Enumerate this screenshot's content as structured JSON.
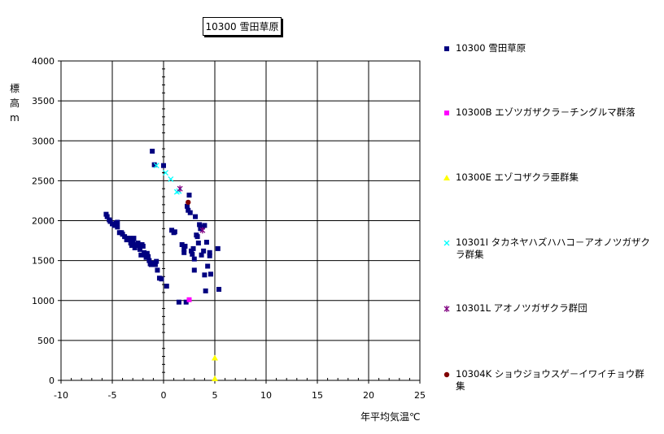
{
  "chart_data": {
    "type": "scatter",
    "title": "10300 雪田草原",
    "xlabel": "年平均気温℃",
    "ylabel": [
      "標",
      "高",
      "m"
    ],
    "xlim": [
      -10,
      25
    ],
    "ylim": [
      0,
      4000
    ],
    "x_ticks": [
      -10,
      -5,
      0,
      5,
      10,
      15,
      20,
      25
    ],
    "y_ticks": [
      0,
      500,
      1000,
      1500,
      2000,
      2500,
      3000,
      3500,
      4000
    ],
    "grid": true,
    "legend_position": "right",
    "series": [
      {
        "name": "10300 雪田草原",
        "color": "#000080",
        "marker": "square",
        "points": [
          [
            -5.6,
            2080
          ],
          [
            -5.5,
            2050
          ],
          [
            -5.3,
            2010
          ],
          [
            -5.2,
            1990
          ],
          [
            -5.0,
            1960
          ],
          [
            -4.9,
            1960
          ],
          [
            -4.8,
            1940
          ],
          [
            -4.6,
            1970
          ],
          [
            -4.5,
            1980
          ],
          [
            -4.5,
            1920
          ],
          [
            -4.3,
            1850
          ],
          [
            -4.1,
            1850
          ],
          [
            -4.0,
            1830
          ],
          [
            -3.8,
            1800
          ],
          [
            -3.6,
            1760
          ],
          [
            -3.5,
            1780
          ],
          [
            -3.3,
            1780
          ],
          [
            -3.2,
            1720
          ],
          [
            -3.1,
            1690
          ],
          [
            -3.0,
            1750
          ],
          [
            -2.9,
            1780
          ],
          [
            -2.8,
            1660
          ],
          [
            -2.7,
            1700
          ],
          [
            -2.5,
            1720
          ],
          [
            -2.4,
            1690
          ],
          [
            -2.3,
            1640
          ],
          [
            -2.2,
            1570
          ],
          [
            -2.1,
            1700
          ],
          [
            -2.0,
            1680
          ],
          [
            -1.9,
            1600
          ],
          [
            -1.8,
            1570
          ],
          [
            -1.7,
            1540
          ],
          [
            -1.6,
            1590
          ],
          [
            -1.5,
            1550
          ],
          [
            -1.4,
            1500
          ],
          [
            -1.3,
            1460
          ],
          [
            -1.2,
            1450
          ],
          [
            -1.0,
            1470
          ],
          [
            -0.8,
            1450
          ],
          [
            -0.7,
            1490
          ],
          [
            -0.6,
            1380
          ],
          [
            -0.4,
            1280
          ],
          [
            -0.2,
            1270
          ],
          [
            0.3,
            1180
          ],
          [
            0.8,
            1880
          ],
          [
            1.0,
            1850
          ],
          [
            1.1,
            1860
          ],
          [
            1.5,
            980
          ],
          [
            1.8,
            1700
          ],
          [
            2.0,
            1640
          ],
          [
            2.0,
            1600
          ],
          [
            2.1,
            1680
          ],
          [
            2.2,
            980
          ],
          [
            2.3,
            2180
          ],
          [
            2.4,
            2130
          ],
          [
            2.5,
            2320
          ],
          [
            2.6,
            2100
          ],
          [
            2.7,
            1620
          ],
          [
            2.8,
            1580
          ],
          [
            2.9,
            1650
          ],
          [
            3.0,
            1520
          ],
          [
            3.0,
            1380
          ],
          [
            3.1,
            2050
          ],
          [
            3.2,
            1820
          ],
          [
            3.3,
            1800
          ],
          [
            3.4,
            1720
          ],
          [
            3.5,
            1950
          ],
          [
            3.6,
            1900
          ],
          [
            3.7,
            1570
          ],
          [
            3.8,
            1920
          ],
          [
            3.9,
            1620
          ],
          [
            4.0,
            1940
          ],
          [
            4.0,
            1320
          ],
          [
            4.1,
            1120
          ],
          [
            4.2,
            1730
          ],
          [
            4.3,
            1430
          ],
          [
            4.5,
            1600
          ],
          [
            4.5,
            1560
          ],
          [
            4.6,
            1330
          ],
          [
            5.3,
            1650
          ],
          [
            5.4,
            1140
          ],
          [
            -0.9,
            2700
          ],
          [
            0.0,
            2690
          ],
          [
            -1.1,
            2870
          ]
        ]
      },
      {
        "name": "10300B エゾツガザクラ－チングルマ群落",
        "color": "#ff00ff",
        "marker": "square",
        "points": [
          [
            2.5,
            1010
          ]
        ]
      },
      {
        "name": "10300E エゾコザクラ亜群集",
        "color": "#ffff00",
        "marker": "triangle",
        "points": [
          [
            5.0,
            280
          ],
          [
            5.0,
            20
          ]
        ]
      },
      {
        "name": "10301I タカネヤハズハハコ－アオノツガザクラ群集",
        "color": "#00ffff",
        "marker": "x",
        "points": [
          [
            -0.7,
            2690
          ],
          [
            0.2,
            2600
          ],
          [
            0.7,
            2520
          ],
          [
            1.3,
            2360
          ],
          [
            1.5,
            2370
          ]
        ]
      },
      {
        "name": "10301L アオノツガザクラ群団",
        "color": "#800080",
        "marker": "star",
        "points": [
          [
            1.6,
            2400
          ],
          [
            3.8,
            1880
          ]
        ]
      },
      {
        "name": "10304K ショウジョウスゲ－イワイチョウ群集",
        "color": "#800000",
        "marker": "circle",
        "points": [
          [
            2.4,
            2230
          ]
        ]
      }
    ]
  }
}
